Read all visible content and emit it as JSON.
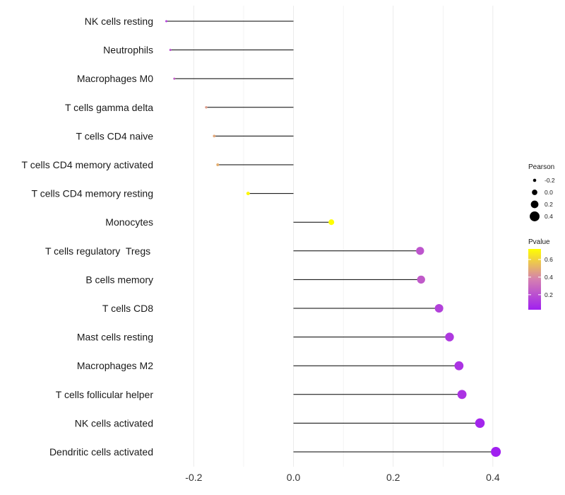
{
  "chart_data": {
    "type": "lollipop",
    "title": "",
    "xlabel": "",
    "ylabel": "",
    "xlim": [
      -0.26,
      0.42
    ],
    "x_ticks": [
      -0.2,
      0.0,
      0.2,
      0.4
    ],
    "x_tick_labels": [
      "-0.2",
      "0.0",
      "0.2",
      "0.4"
    ],
    "grid": true,
    "legend_position": "right",
    "points": [
      {
        "label": "NK cells resting",
        "pearson": -0.255,
        "pvalue": 0.15
      },
      {
        "label": "Neutrophils",
        "pearson": -0.247,
        "pvalue": 0.2
      },
      {
        "label": "Macrophages M0",
        "pearson": -0.239,
        "pvalue": 0.25
      },
      {
        "label": "T cells gamma delta",
        "pearson": -0.175,
        "pvalue": 0.45
      },
      {
        "label": "T cells CD4 naive",
        "pearson": -0.159,
        "pvalue": 0.48
      },
      {
        "label": "T cells CD4 memory activated",
        "pearson": -0.152,
        "pvalue": 0.5
      },
      {
        "label": "T cells CD4 memory resting",
        "pearson": -0.091,
        "pvalue": 0.7
      },
      {
        "label": "Monocytes",
        "pearson": 0.076,
        "pvalue": 0.72
      },
      {
        "label": "T cells regulatory  Tregs ",
        "pearson": 0.254,
        "pvalue": 0.22
      },
      {
        "label": "B cells memory",
        "pearson": 0.256,
        "pvalue": 0.24
      },
      {
        "label": "T cells CD8",
        "pearson": 0.292,
        "pvalue": 0.15
      },
      {
        "label": "Mast cells resting",
        "pearson": 0.313,
        "pvalue": 0.12
      },
      {
        "label": "Macrophages M2",
        "pearson": 0.332,
        "pvalue": 0.1
      },
      {
        "label": "T cells follicular helper",
        "pearson": 0.338,
        "pvalue": 0.1
      },
      {
        "label": "NK cells activated",
        "pearson": 0.374,
        "pvalue": 0.05
      },
      {
        "label": "Dendritic cells activated",
        "pearson": 0.406,
        "pvalue": 0.03
      }
    ],
    "size_legend": {
      "title": "Pearson",
      "values": [
        -0.2,
        0.0,
        0.2,
        0.4
      ],
      "labels": [
        "-0.2",
        "0.0",
        "0.2",
        "0.4"
      ]
    },
    "color_legend": {
      "title": "Pvalue",
      "range": [
        0.03,
        0.72
      ],
      "ticks": [
        0.2,
        0.4,
        0.6
      ],
      "tick_labels": [
        "0.2",
        "0.4",
        "0.6"
      ],
      "low_color": "#a020f0",
      "mid_color": "#d580b0",
      "high_color": "#ffff00"
    },
    "colors": {
      "stem": "#000000",
      "grid": "#ebebeb"
    }
  }
}
